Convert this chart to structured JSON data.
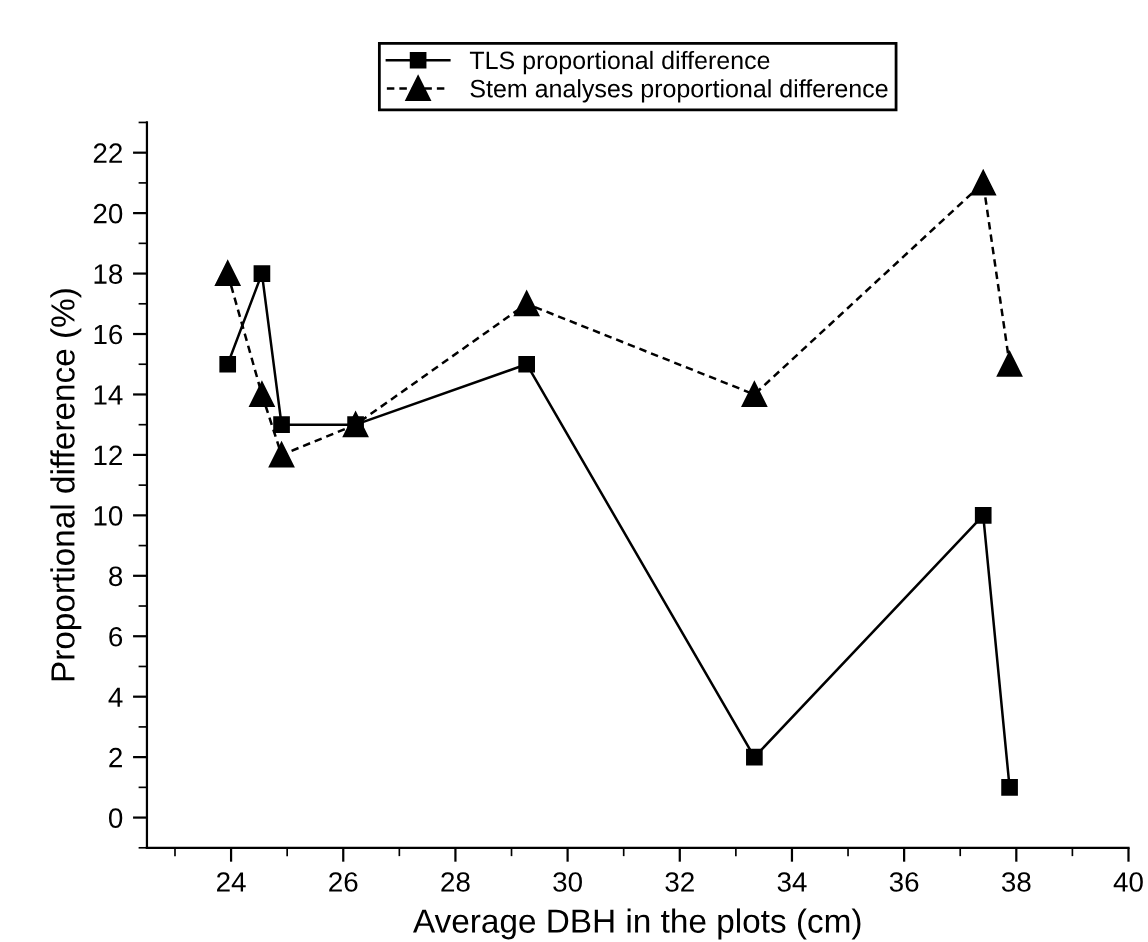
{
  "chart_data": {
    "type": "line",
    "xlabel": "Average DBH in the plots (cm)",
    "ylabel": "Proportional difference (%)",
    "x": [
      23.94,
      24.55,
      24.9,
      26.22,
      29.27,
      33.33,
      37.41,
      37.88
    ],
    "series": [
      {
        "name": "TLS proportional difference",
        "color": "#000000",
        "marker": "square",
        "line_style": "solid",
        "values": [
          15,
          18,
          13,
          13,
          15,
          2,
          10,
          1
        ]
      },
      {
        "name": "Stem analyses proportional difference",
        "color": "#000000",
        "marker": "triangle",
        "line_style": "dashed",
        "values": [
          18,
          14,
          12,
          13,
          17,
          14,
          21,
          15
        ]
      }
    ],
    "xlim": [
      22.5,
      40
    ],
    "xticks": [
      24,
      26,
      28,
      30,
      32,
      34,
      36,
      38,
      40
    ],
    "ylim": [
      -1,
      23
    ],
    "yticks": [
      0,
      2,
      4,
      6,
      8,
      10,
      12,
      14,
      16,
      18,
      20,
      22
    ],
    "grid": false,
    "legend": "top"
  }
}
